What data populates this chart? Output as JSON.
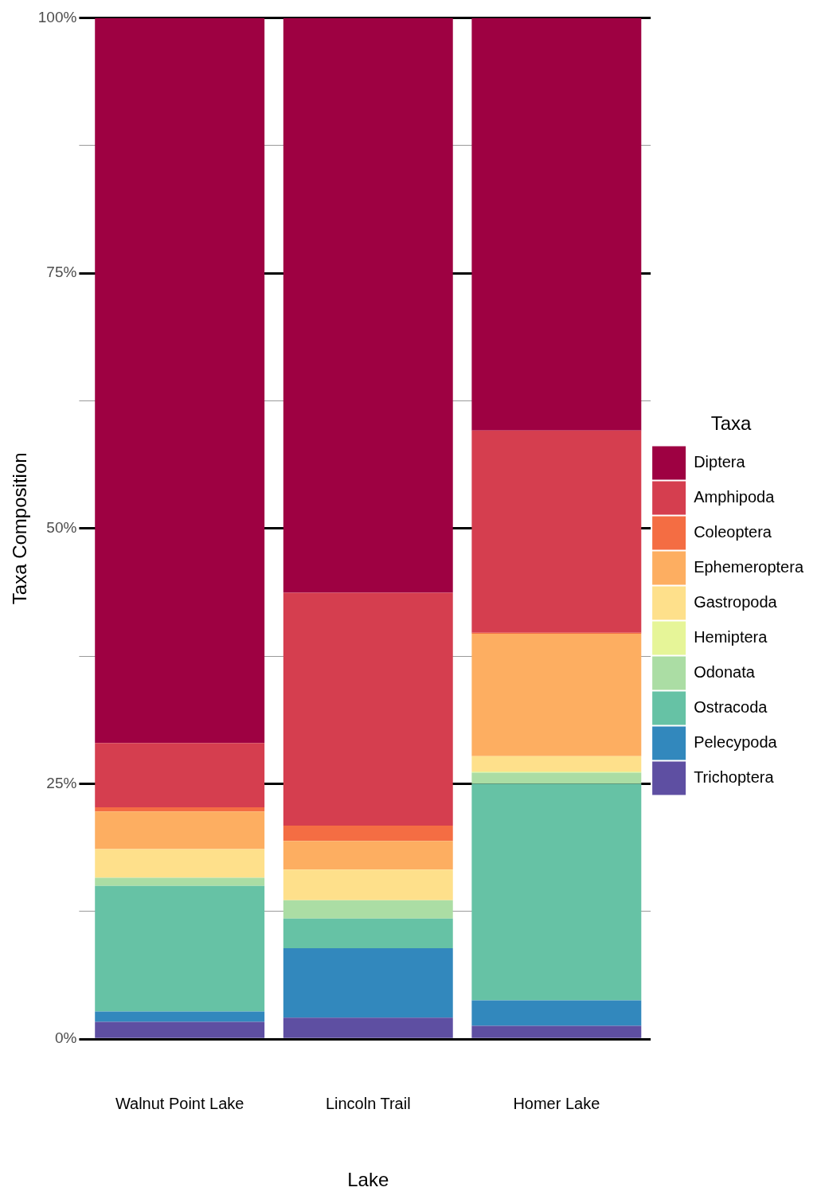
{
  "chart_data": {
    "type": "bar",
    "stacked": true,
    "xlabel": "Lake",
    "ylabel": "Taxa Composition",
    "legend_title": "Taxa",
    "legend": "right",
    "categories": [
      "Walnut Point Lake",
      "Lincoln Trail",
      "Homer Lake"
    ],
    "series": [
      {
        "name": "Trichoptera",
        "color": "#5e4fa2",
        "values": [
          1.7,
          2.1,
          1.3
        ]
      },
      {
        "name": "Pelecypoda",
        "color": "#3288bd",
        "values": [
          1.0,
          6.8,
          2.5
        ]
      },
      {
        "name": "Ostracoda",
        "color": "#66c2a5",
        "values": [
          12.3,
          2.9,
          21.2
        ]
      },
      {
        "name": "Odonata",
        "color": "#abdda4",
        "values": [
          0.8,
          1.8,
          1.1
        ]
      },
      {
        "name": "Hemiptera",
        "color": "#e6f598",
        "values": [
          0,
          0,
          0.1
        ]
      },
      {
        "name": "Gastropoda",
        "color": "#fee08b",
        "values": [
          2.8,
          3.0,
          1.5
        ]
      },
      {
        "name": "Ephemeroptera",
        "color": "#fdae61",
        "values": [
          3.7,
          2.8,
          12.0
        ]
      },
      {
        "name": "Coleoptera",
        "color": "#f46d43",
        "values": [
          0.4,
          1.5,
          0.1
        ]
      },
      {
        "name": "Amphipoda",
        "color": "#d53e4f",
        "values": [
          6.3,
          22.8,
          19.8
        ]
      },
      {
        "name": "Diptera",
        "color": "#9e0142",
        "values": [
          71.0,
          56.3,
          40.4
        ]
      }
    ],
    "ylim": [
      0,
      100
    ],
    "yticks": [
      {
        "value": 0,
        "label": "0%"
      },
      {
        "value": 12.5,
        "label": null
      },
      {
        "value": 25,
        "label": "25%"
      },
      {
        "value": 37.5,
        "label": null
      },
      {
        "value": 50,
        "label": "50%"
      },
      {
        "value": 62.5,
        "label": null
      },
      {
        "value": 75,
        "label": "75%"
      },
      {
        "value": 87.5,
        "label": null
      },
      {
        "value": 100,
        "label": "100%"
      }
    ],
    "grid": "y"
  }
}
